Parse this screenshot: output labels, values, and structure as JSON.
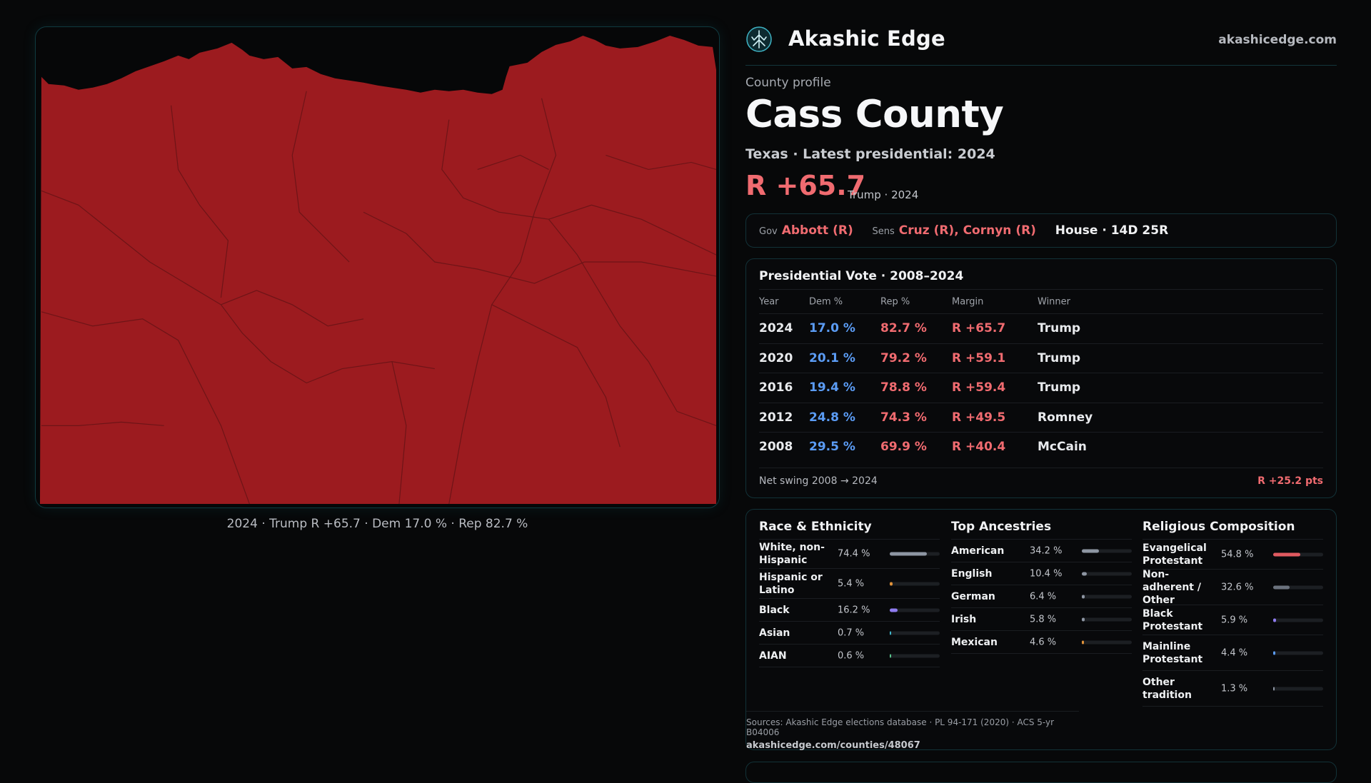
{
  "map": {
    "caption": "2024 · Trump R +65.7 · Dem 17.0 % · Rep 82.7 %",
    "fill_color": "#9c1b1f",
    "border_color": "#0f3a40"
  },
  "brand": {
    "name": "Akashic Edge",
    "url": "akashicedge.com",
    "logo_icon": "tree-emblem-icon"
  },
  "profile": {
    "kicker": "County profile",
    "county": "Cass County",
    "subline": "Texas · Latest presidential: 2024",
    "margin": "R +65.7",
    "margin_note": "Trump · 2024"
  },
  "officials": {
    "gov_label": "Gov",
    "gov": "Abbott (R)",
    "sens_label": "Sens",
    "sens": "Cruz (R), Cornyn (R)",
    "house": "House · 14D 25R"
  },
  "presidential": {
    "title": "Presidential Vote · 2008–2024",
    "headers": [
      "Year",
      "Dem %",
      "Rep %",
      "Margin",
      "Winner"
    ],
    "rows": [
      {
        "year": "2024",
        "dem": "17.0 %",
        "rep": "82.7 %",
        "margin": "R +65.7",
        "winner": "Trump"
      },
      {
        "year": "2020",
        "dem": "20.1 %",
        "rep": "79.2 %",
        "margin": "R +59.1",
        "winner": "Trump"
      },
      {
        "year": "2016",
        "dem": "19.4 %",
        "rep": "78.8 %",
        "margin": "R +59.4",
        "winner": "Trump"
      },
      {
        "year": "2012",
        "dem": "24.8 %",
        "rep": "74.3 %",
        "margin": "R +49.5",
        "winner": "Romney"
      },
      {
        "year": "2008",
        "dem": "29.5 %",
        "rep": "69.9 %",
        "margin": "R +40.4",
        "winner": "McCain"
      }
    ],
    "swing_label": "Net swing 2008 → 2024",
    "swing_value": "R +25.2 pts"
  },
  "demographics": {
    "race": {
      "title": "Race & Ethnicity",
      "items": [
        {
          "name": "White, non-\nHispanic",
          "pct": "74.4 %",
          "value": 74.4,
          "color": "#8e96a3"
        },
        {
          "name": "Hispanic or\nLatino",
          "pct": "5.4 %",
          "value": 5.4,
          "color": "#e0923a"
        },
        {
          "name": "Black",
          "pct": "16.2 %",
          "value": 16.2,
          "color": "#8f7cf0"
        },
        {
          "name": "Asian",
          "pct": "0.7 %",
          "value": 0.7,
          "color": "#3fb6c9"
        },
        {
          "name": "AIAN",
          "pct": "0.6 %",
          "value": 0.6,
          "color": "#58c48b"
        }
      ]
    },
    "ancestry": {
      "title": "Top Ancestries",
      "items": [
        {
          "name": "American",
          "pct": "34.2 %",
          "value": 34.2,
          "color": "#8e96a3"
        },
        {
          "name": "English",
          "pct": "10.4 %",
          "value": 10.4,
          "color": "#8e96a3"
        },
        {
          "name": "German",
          "pct": "6.4 %",
          "value": 6.4,
          "color": "#8e96a3"
        },
        {
          "name": "Irish",
          "pct": "5.8 %",
          "value": 5.8,
          "color": "#8e96a3"
        },
        {
          "name": "Mexican",
          "pct": "4.6 %",
          "value": 4.6,
          "color": "#e0923a"
        }
      ]
    },
    "religion": {
      "title": "Religious Composition",
      "items": [
        {
          "name": "Evangelical\nProtestant",
          "pct": "54.8 %",
          "value": 54.8,
          "color": "#e05a60"
        },
        {
          "name": "Non-\nadherent /\nOther",
          "pct": "32.6 %",
          "value": 32.6,
          "color": "#6b727d"
        },
        {
          "name": "Black\nProtestant",
          "pct": "5.9 %",
          "value": 5.9,
          "color": "#8f7cf0"
        },
        {
          "name": "Mainline\nProtestant",
          "pct": "4.4 %",
          "value": 4.4,
          "color": "#5b9cf5"
        },
        {
          "name": "Other\ntradition",
          "pct": "1.3 %",
          "value": 1.3,
          "color": "#8e96a3"
        }
      ]
    },
    "sources": "Sources: Akashic Edge elections database · PL 94-171 (2020) · ACS 5-yr B04006",
    "sources_url": "akashicedge.com/counties/48067"
  }
}
